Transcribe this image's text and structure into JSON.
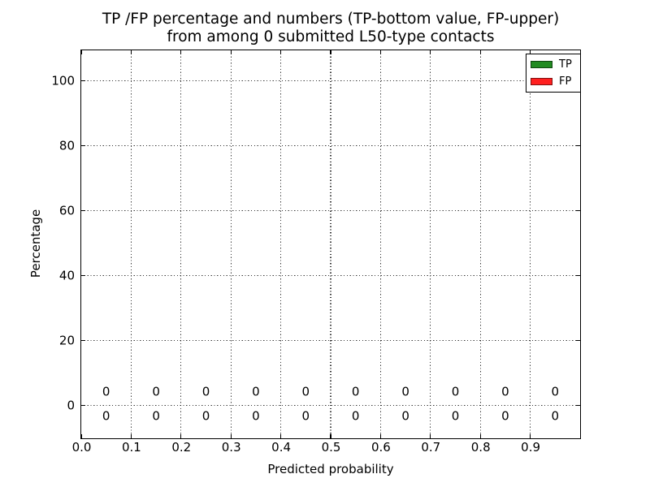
{
  "chart_data": {
    "type": "bar",
    "title_line1": "TP /FP percentage and numbers (TP-bottom value, FP-upper)",
    "title_line2": "from among 0 submitted L50-type contacts",
    "xlabel": "Predicted probability",
    "ylabel": "Percentage",
    "xlim": [
      0.0,
      1.0
    ],
    "ylim": [
      -10.1,
      109.4
    ],
    "x_ticks": [
      0.0,
      0.1,
      0.2,
      0.3,
      0.4,
      0.5,
      0.6,
      0.7,
      0.8,
      0.9
    ],
    "x_tick_labels": [
      "0.0",
      "0.1",
      "0.2",
      "0.3",
      "0.4",
      "0.5",
      "0.6",
      "0.7",
      "0.8",
      "0.9"
    ],
    "y_ticks": [
      0,
      20,
      40,
      60,
      80,
      100
    ],
    "y_tick_labels": [
      "0",
      "20",
      "40",
      "60",
      "80",
      "100"
    ],
    "grid": {
      "visible": true,
      "linestyle": "dotted"
    },
    "bin_centers": [
      0.05,
      0.15,
      0.25,
      0.35,
      0.45,
      0.55,
      0.65,
      0.75,
      0.85,
      0.95
    ],
    "series": [
      {
        "name": "TP",
        "color": "#228b22",
        "values": [
          0,
          0,
          0,
          0,
          0,
          0,
          0,
          0,
          0,
          0
        ],
        "value_label_position": "below zero line"
      },
      {
        "name": "FP",
        "color": "#ff2020",
        "values": [
          0,
          0,
          0,
          0,
          0,
          0,
          0,
          0,
          0,
          0
        ],
        "value_label_position": "above zero line"
      }
    ],
    "legend": {
      "position": "upper right",
      "entries": [
        {
          "label": "TP",
          "color": "#228b22"
        },
        {
          "label": "FP",
          "color": "#ff2020"
        }
      ]
    }
  },
  "colors": {
    "tp_green": "#228b22",
    "fp_red": "#ff2020",
    "frame": "#000000",
    "grid_dots": "#444444",
    "background": "#ffffff"
  }
}
